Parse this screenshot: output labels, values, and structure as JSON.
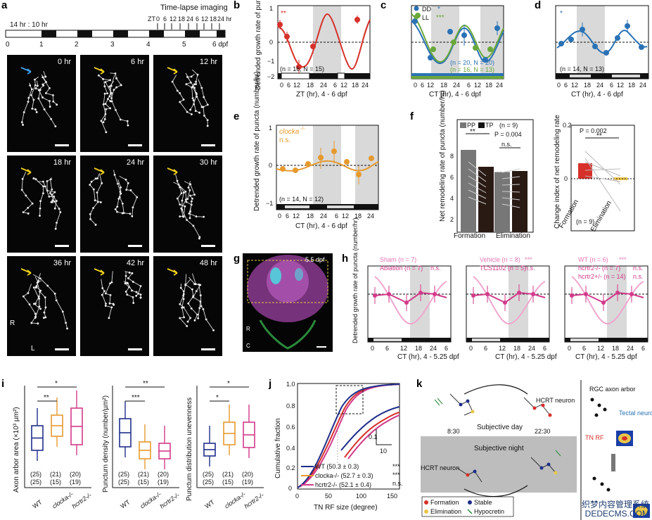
{
  "panels": {
    "a": {
      "label": "a",
      "title": "Time-lapse imaging",
      "light_schedule": "14 hr : 10 hr",
      "zt_label": "ZT",
      "zt_ticks": [
        "0",
        "6",
        "12",
        "18",
        "24",
        "6",
        "12",
        "18",
        "24 hr"
      ],
      "dpf_ticks": [
        "0",
        "1",
        "2",
        "3",
        "4",
        "5",
        "6 dpf"
      ],
      "time_points": [
        "0 hr",
        "6 hr",
        "12 hr",
        "18 hr",
        "24 hr",
        "30 hr",
        "36 hr",
        "42 hr",
        "48 hr"
      ],
      "orientation": {
        "r": "R",
        "l": "L"
      }
    },
    "b": {
      "label": "b",
      "ylabel": "Detrended growth rate of puncta (number/hr)",
      "xlabel": "ZT (hr), 4 - 6 dpf",
      "sig": "**",
      "n_text": "(n = 16, N = 15)"
    },
    "c": {
      "label": "c",
      "xlabel": "CT (hr), 4 - 6 dpf",
      "legend": [
        "DD",
        "LL"
      ],
      "sig_dd": "*",
      "sig_ll": "***",
      "n_dd": "(n = 20, N = 20)",
      "n_ll": "(n = 16, N = 13)"
    },
    "d": {
      "label": "d",
      "xlabel": "CT (hr), 4 - 6 dpf",
      "sig": "*",
      "n_text": "(n = 14, N = 13)"
    },
    "e": {
      "label": "e",
      "ylabel": "Detrended growth rate of puncta (number/hr)",
      "xlabel": "CT (hr), 4 - 6 dpf",
      "genotype": "clocka",
      "genotype_sup": "-/-",
      "sig": "n.s.",
      "n_text": "(n = 14, N = 12)"
    },
    "f": {
      "label": "f",
      "ylabel": "Net remodeling rate of puncta (number/hr)",
      "legend": [
        "PP",
        "TP"
      ],
      "n_text": "(n = 9)",
      "sig": "**",
      "p_value": "P = 0.004",
      "ns": "n.s.",
      "categories": [
        "Formation",
        "Elimination"
      ],
      "right_ylabel": "Change index of net remodeling rate",
      "right_p": "P = 0.002",
      "right_sig": "**",
      "right_n": "(n = 9)"
    },
    "g": {
      "label": "g",
      "age": "5.5 dpf",
      "axis": [
        "R",
        "C"
      ]
    },
    "h": {
      "label": "h",
      "ylabel": "Detrended growth rate of puncta (number/hr)",
      "xlabel": "CT (hr), 4 - 5.25 dpf",
      "groups": [
        {
          "a": "Sham (n = 7)",
          "b": "Ablation (n = 7)",
          "b_sig": "n.s.",
          "a_sig": ""
        },
        {
          "a": "Vehicle (n = 8)",
          "a_sig": "***",
          "b": "TCS1102 (n = 5)",
          "b_sig": "n.s."
        },
        {
          "a": "WT (n = 6)",
          "a_sig": "***",
          "b": "hcrtr2-/- (n = 7)",
          "b_sig": "n.s.",
          "c": "hcrtr2+/- (n = 14)",
          "c_sig": "n.s."
        }
      ]
    },
    "i": {
      "label": "i",
      "ylabels": [
        "Axon arbor area (×10³ µm²)",
        "Puncturn density (number/µm²)",
        "Punctum distribution unevenness"
      ],
      "groups": [
        "WT",
        "clocka-/-",
        "hcrtr2-/-"
      ],
      "counts_top": [
        "(25)",
        "(21)",
        "(20)"
      ],
      "counts_bottom": [
        "(25)",
        "(15)",
        "(19)"
      ],
      "sig_1": [
        "*",
        "**"
      ],
      "sig_2": [
        "**",
        "***"
      ],
      "sig_3": [
        "*",
        "*"
      ]
    },
    "j": {
      "label": "j",
      "ylabel": "Cumulative fraction",
      "xlabel": "TN RF size (degree)",
      "legend": [
        "WT (50.3 ± 0.3)",
        "clocka-/- (52.7 ± 0.3)",
        "hcrtr2-/- (52.1 ± 0.4)"
      ],
      "sig": [
        "***",
        "***",
        "n.s."
      ],
      "scale": [
        "0.1",
        "10"
      ]
    },
    "k": {
      "label": "k",
      "day": "Subjective day",
      "night": "Subjective night",
      "time_left": "8:30",
      "time_right": "22:30",
      "hcrt_top": "HCRT neuron",
      "hcrt_bottom": "HCRT neuron",
      "rgc": "RGC axon arbor",
      "tectal": "Tectal neuron",
      "tnrf": "TN RF",
      "legend": [
        "Formation",
        "Stable",
        "Elimination",
        "Hypocretin"
      ]
    }
  },
  "chart_data": [
    {
      "type": "line",
      "panel": "b",
      "x": [
        2,
        6,
        14,
        18,
        22
      ],
      "xlabel": "ZT (hr), 4 - 6 dpf",
      "xlim": [
        0,
        24
      ],
      "ylim": [
        -2,
        1.5
      ]
    },
    {
      "type": "line",
      "panel": "c",
      "xlabel": "CT (hr), 4 - 6 dpf",
      "series": [
        {
          "name": "DD"
        },
        {
          "name": "LL"
        }
      ],
      "ylim": [
        -1,
        2
      ]
    },
    {
      "type": "bar",
      "panel": "f",
      "categories": [
        "Formation",
        "Elimination"
      ],
      "series": [
        {
          "name": "PP",
          "values": [
            7.8,
            5.7
          ]
        },
        {
          "name": "TP",
          "values": [
            6.2,
            5.8
          ]
        }
      ]
    }
  ],
  "watermark": [
    "织梦内容管理系统",
    "DEDECMS.COM"
  ],
  "colors": {
    "red": "#d7302a",
    "blue": "#2a72b5",
    "green": "#6aa83b",
    "orange": "#e69a2e",
    "magenta": "#d23a8a",
    "gray": "#d9d9d9"
  }
}
